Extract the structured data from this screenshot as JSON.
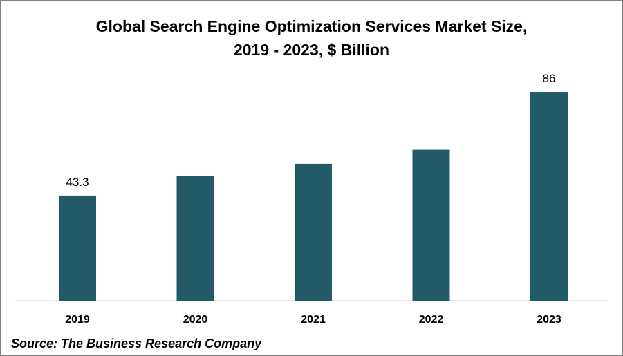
{
  "chart_data": {
    "type": "bar",
    "title_line1": "Global Search Engine Optimization Services Market Size,",
    "title_line2": "2019 - 2023, $ Billion",
    "categories": [
      "2019",
      "2020",
      "2021",
      "2022",
      "2023"
    ],
    "values": [
      43.3,
      51.5,
      56.4,
      62.2,
      86
    ],
    "data_labels": [
      "43.3",
      "",
      "",
      "",
      "86"
    ],
    "xlabel": "",
    "ylabel": "",
    "ylim": [
      0,
      86
    ],
    "grid": false,
    "bar_color": "#235a68",
    "axis_color": "#d9d9d9"
  },
  "source": "Source: The Business Research Company"
}
